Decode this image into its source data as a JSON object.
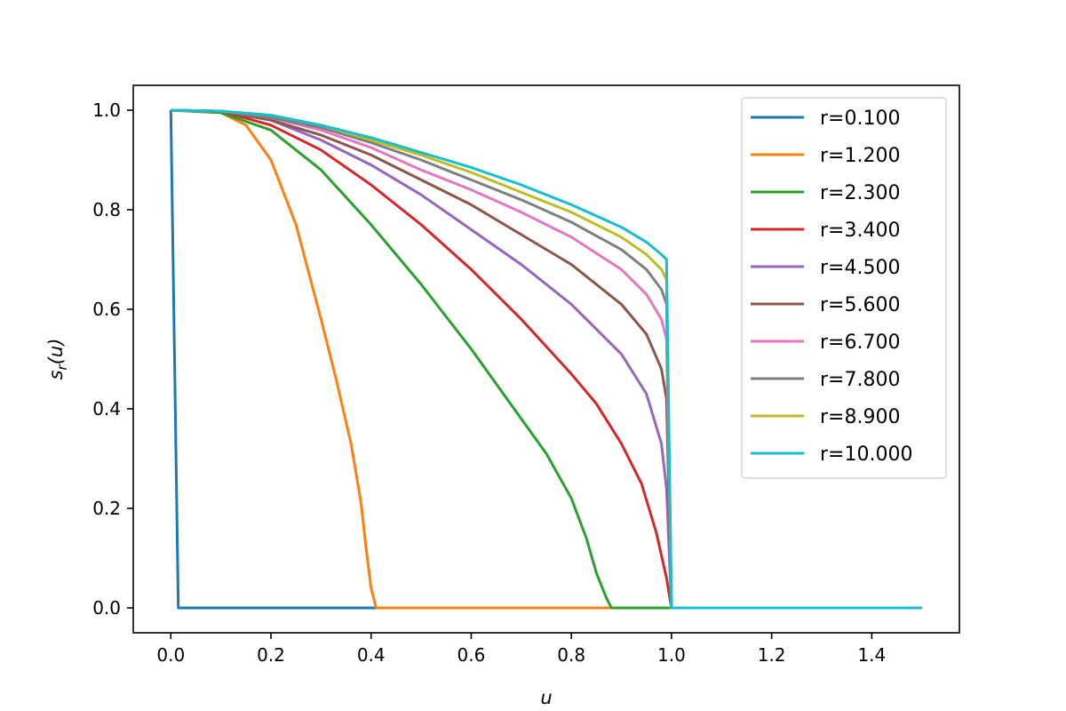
{
  "chart_data": {
    "type": "line",
    "title": "",
    "xlabel": "u",
    "ylabel_main": "s",
    "ylabel_sub": "r",
    "ylabel_tail": "(u)",
    "xlim": [
      -0.075,
      1.575
    ],
    "ylim": [
      -0.05,
      1.05
    ],
    "xticks": [
      0.0,
      0.2,
      0.4,
      0.6,
      0.8,
      1.0,
      1.2,
      1.4
    ],
    "xtick_labels": [
      "0.0",
      "0.2",
      "0.4",
      "0.6",
      "0.8",
      "1.0",
      "1.2",
      "1.4"
    ],
    "yticks": [
      0.0,
      0.2,
      0.4,
      0.6,
      0.8,
      1.0
    ],
    "ytick_labels": [
      "0.0",
      "0.2",
      "0.4",
      "0.6",
      "0.8",
      "1.0"
    ],
    "grid": false,
    "legend_position": "top-right",
    "series": [
      {
        "name": "r=0.100",
        "color": "#1f77b4",
        "x": [
          0.0,
          0.015,
          0.4,
          1.5
        ],
        "y": [
          1.0,
          0.0,
          0.0,
          0.0
        ]
      },
      {
        "name": "r=1.200",
        "color": "#ff7f0e",
        "x": [
          0.0,
          0.1,
          0.15,
          0.2,
          0.25,
          0.3,
          0.33,
          0.36,
          0.38,
          0.39,
          0.4,
          0.41,
          0.42,
          1.5
        ],
        "y": [
          1.0,
          0.995,
          0.97,
          0.9,
          0.77,
          0.58,
          0.46,
          0.33,
          0.21,
          0.12,
          0.04,
          0.0,
          0.0,
          0.0
        ]
      },
      {
        "name": "r=2.300",
        "color": "#2ca02c",
        "x": [
          0.0,
          0.1,
          0.2,
          0.3,
          0.4,
          0.5,
          0.6,
          0.7,
          0.75,
          0.8,
          0.83,
          0.85,
          0.87,
          0.88,
          1.0,
          1.5
        ],
        "y": [
          1.0,
          0.995,
          0.96,
          0.88,
          0.77,
          0.65,
          0.52,
          0.38,
          0.31,
          0.22,
          0.14,
          0.07,
          0.02,
          0.0,
          0.0,
          0.0
        ]
      },
      {
        "name": "r=3.400",
        "color": "#d62728",
        "x": [
          0.0,
          0.1,
          0.2,
          0.3,
          0.4,
          0.5,
          0.6,
          0.7,
          0.8,
          0.85,
          0.9,
          0.94,
          0.97,
          0.99,
          1.0,
          1.5
        ],
        "y": [
          1.0,
          0.998,
          0.97,
          0.92,
          0.85,
          0.77,
          0.68,
          0.58,
          0.47,
          0.41,
          0.33,
          0.25,
          0.15,
          0.06,
          0.0,
          0.0
        ]
      },
      {
        "name": "r=4.500",
        "color": "#9467bd",
        "x": [
          0.0,
          0.1,
          0.2,
          0.3,
          0.4,
          0.5,
          0.6,
          0.7,
          0.8,
          0.9,
          0.95,
          0.98,
          0.99,
          1.0,
          1.5
        ],
        "y": [
          1.0,
          0.998,
          0.98,
          0.94,
          0.89,
          0.83,
          0.76,
          0.69,
          0.61,
          0.51,
          0.43,
          0.33,
          0.24,
          0.0,
          0.0
        ]
      },
      {
        "name": "r=5.600",
        "color": "#8c564b",
        "x": [
          0.0,
          0.1,
          0.2,
          0.3,
          0.4,
          0.5,
          0.6,
          0.7,
          0.8,
          0.9,
          0.95,
          0.98,
          0.99,
          1.0,
          1.5
        ],
        "y": [
          1.0,
          0.998,
          0.98,
          0.95,
          0.91,
          0.86,
          0.81,
          0.75,
          0.69,
          0.61,
          0.55,
          0.48,
          0.42,
          0.0,
          0.0
        ]
      },
      {
        "name": "r=6.700",
        "color": "#e377c2",
        "x": [
          0.0,
          0.1,
          0.2,
          0.3,
          0.4,
          0.5,
          0.6,
          0.7,
          0.8,
          0.9,
          0.95,
          0.98,
          0.99,
          1.0,
          1.5
        ],
        "y": [
          1.0,
          0.998,
          0.985,
          0.96,
          0.925,
          0.88,
          0.84,
          0.795,
          0.745,
          0.68,
          0.63,
          0.58,
          0.54,
          0.0,
          0.0
        ]
      },
      {
        "name": "r=7.800",
        "color": "#7f7f7f",
        "x": [
          0.0,
          0.1,
          0.2,
          0.3,
          0.4,
          0.5,
          0.6,
          0.7,
          0.8,
          0.9,
          0.95,
          0.98,
          0.99,
          1.0,
          1.5
        ],
        "y": [
          1.0,
          0.998,
          0.985,
          0.965,
          0.935,
          0.9,
          0.86,
          0.82,
          0.775,
          0.72,
          0.68,
          0.64,
          0.61,
          0.0,
          0.0
        ]
      },
      {
        "name": "r=8.900",
        "color": "#bcbd22",
        "x": [
          0.0,
          0.1,
          0.2,
          0.3,
          0.4,
          0.5,
          0.6,
          0.7,
          0.8,
          0.9,
          0.95,
          0.98,
          0.99,
          1.0,
          1.5
        ],
        "y": [
          1.0,
          0.998,
          0.99,
          0.97,
          0.94,
          0.91,
          0.875,
          0.835,
          0.795,
          0.745,
          0.71,
          0.68,
          0.66,
          0.0,
          0.0
        ]
      },
      {
        "name": "r=10.000",
        "color": "#17becf",
        "x": [
          0.0,
          0.1,
          0.2,
          0.3,
          0.4,
          0.5,
          0.6,
          0.7,
          0.8,
          0.9,
          0.95,
          0.98,
          0.99,
          1.0,
          1.5
        ],
        "y": [
          1.0,
          0.998,
          0.99,
          0.97,
          0.945,
          0.915,
          0.885,
          0.85,
          0.81,
          0.765,
          0.735,
          0.71,
          0.7,
          0.0,
          0.0
        ]
      }
    ]
  }
}
